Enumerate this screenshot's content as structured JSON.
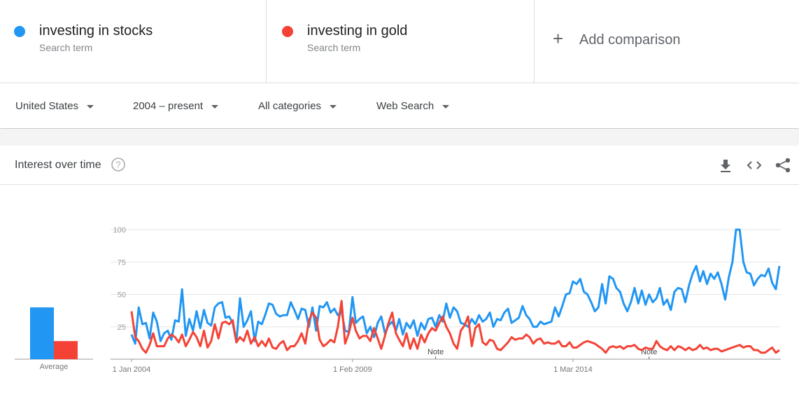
{
  "add_comparison": "Add comparison",
  "filters": [
    "United States",
    "2004 – present",
    "All categories",
    "Web Search"
  ],
  "panel_title": "Interest over time",
  "chart_data": {
    "type": "line",
    "average_label": "Average",
    "x": [
      "2004-01-01",
      "2004-02-01",
      "2004-03-01",
      "2004-04-01",
      "2004-05-01",
      "2004-06-01",
      "2004-07-01",
      "2004-08-01",
      "2004-09-01",
      "2004-10-01",
      "2004-11-01",
      "2004-12-01",
      "2005-01-01",
      "2005-02-01",
      "2005-03-01",
      "2005-04-01",
      "2005-05-01",
      "2005-06-01",
      "2005-07-01",
      "2005-08-01",
      "2005-09-01",
      "2005-10-01",
      "2005-11-01",
      "2005-12-01",
      "2006-01-01",
      "2006-02-01",
      "2006-03-01",
      "2006-04-01",
      "2006-05-01",
      "2006-06-01",
      "2006-07-01",
      "2006-08-01",
      "2006-09-01",
      "2006-10-01",
      "2006-11-01",
      "2006-12-01",
      "2007-01-01",
      "2007-02-01",
      "2007-03-01",
      "2007-04-01",
      "2007-05-01",
      "2007-06-01",
      "2007-07-01",
      "2007-08-01",
      "2007-09-01",
      "2007-10-01",
      "2007-11-01",
      "2007-12-01",
      "2008-01-01",
      "2008-02-01",
      "2008-03-01",
      "2008-04-01",
      "2008-05-01",
      "2008-06-01",
      "2008-07-01",
      "2008-08-01",
      "2008-09-01",
      "2008-10-01",
      "2008-11-01",
      "2008-12-01",
      "2009-01-01",
      "2009-02-01",
      "2009-03-01",
      "2009-04-01",
      "2009-05-01",
      "2009-06-01",
      "2009-07-01",
      "2009-08-01",
      "2009-09-01",
      "2009-10-01",
      "2009-11-01",
      "2009-12-01",
      "2010-01-01",
      "2010-02-01",
      "2010-03-01",
      "2010-04-01",
      "2010-05-01",
      "2010-06-01",
      "2010-07-01",
      "2010-08-01",
      "2010-09-01",
      "2010-10-01",
      "2010-11-01",
      "2010-12-01",
      "2011-01-01",
      "2011-02-01",
      "2011-03-01",
      "2011-04-01",
      "2011-05-01",
      "2011-06-01",
      "2011-07-01",
      "2011-08-01",
      "2011-09-01",
      "2011-10-01",
      "2011-11-01",
      "2011-12-01",
      "2012-01-01",
      "2012-02-01",
      "2012-03-01",
      "2012-04-01",
      "2012-05-01",
      "2012-06-01",
      "2012-07-01",
      "2012-08-01",
      "2012-09-01",
      "2012-10-01",
      "2012-11-01",
      "2012-12-01",
      "2013-01-01",
      "2013-02-01",
      "2013-03-01",
      "2013-04-01",
      "2013-05-01",
      "2013-06-01",
      "2013-07-01",
      "2013-08-01",
      "2013-09-01",
      "2013-10-01",
      "2013-11-01",
      "2013-12-01",
      "2014-01-01",
      "2014-02-01",
      "2014-03-01",
      "2014-04-01",
      "2014-05-01",
      "2014-06-01",
      "2014-07-01",
      "2014-08-01",
      "2014-09-01",
      "2014-10-01",
      "2014-11-01",
      "2014-12-01",
      "2015-01-01",
      "2015-02-01",
      "2015-03-01",
      "2015-04-01",
      "2015-05-01",
      "2015-06-01",
      "2015-07-01",
      "2015-08-01",
      "2015-09-01",
      "2015-10-01",
      "2015-11-01",
      "2015-12-01",
      "2016-01-01",
      "2016-02-01",
      "2016-03-01",
      "2016-04-01",
      "2016-05-01",
      "2016-06-01",
      "2016-07-01",
      "2016-08-01",
      "2016-09-01",
      "2016-10-01",
      "2016-11-01",
      "2016-12-01",
      "2017-01-01",
      "2017-02-01",
      "2017-03-01",
      "2017-04-01",
      "2017-05-01",
      "2017-06-01",
      "2017-07-01",
      "2017-08-01",
      "2017-09-01",
      "2017-10-01",
      "2017-11-01",
      "2017-12-01",
      "2018-01-01",
      "2018-02-01",
      "2018-03-01",
      "2018-04-01",
      "2018-05-01",
      "2018-06-01",
      "2018-07-01",
      "2018-08-01",
      "2018-09-01",
      "2018-10-01",
      "2018-11-01",
      "2018-12-01"
    ],
    "series": [
      {
        "name": "investing in stocks",
        "sublabel": "Search term",
        "color": "#2196f3",
        "average": 40,
        "values": [
          19,
          12,
          40,
          27,
          28,
          16,
          36,
          29,
          14,
          20,
          22,
          15,
          30,
          29,
          54,
          18,
          31,
          22,
          37,
          24,
          38,
          28,
          26,
          40,
          43,
          44,
          32,
          33,
          28,
          13,
          47,
          25,
          30,
          37,
          14,
          29,
          27,
          35,
          43,
          42,
          35,
          33,
          34,
          34,
          44,
          38,
          31,
          39,
          38,
          25,
          40,
          22,
          41,
          40,
          44,
          36,
          39,
          34,
          37,
          22,
          21,
          48,
          28,
          31,
          33,
          20,
          25,
          17,
          28,
          33,
          20,
          26,
          29,
          22,
          31,
          19,
          28,
          24,
          30,
          18,
          28,
          23,
          31,
          32,
          25,
          34,
          29,
          43,
          32,
          40,
          37,
          28,
          27,
          25,
          31,
          27,
          34,
          29,
          31,
          36,
          25,
          31,
          30,
          36,
          39,
          28,
          30,
          32,
          41,
          34,
          31,
          25,
          25,
          29,
          27,
          28,
          29,
          40,
          33,
          41,
          50,
          51,
          60,
          58,
          62,
          52,
          50,
          44,
          37,
          40,
          58,
          43,
          64,
          62,
          55,
          52,
          43,
          37,
          44,
          55,
          43,
          53,
          42,
          50,
          44,
          47,
          55,
          42,
          46,
          38,
          52,
          55,
          54,
          44,
          57,
          66,
          72,
          60,
          68,
          58,
          66,
          62,
          67,
          58,
          46,
          63,
          75,
          100,
          100,
          75,
          67,
          66,
          57,
          62,
          65,
          64,
          70,
          59,
          54,
          72
        ]
      },
      {
        "name": "investing in gold",
        "sublabel": "Search term",
        "color": "#f44336",
        "average": 14,
        "values": [
          37,
          17,
          14,
          8,
          5,
          11,
          20,
          10,
          10,
          10,
          16,
          19,
          17,
          13,
          19,
          10,
          15,
          21,
          17,
          10,
          22,
          9,
          14,
          27,
          16,
          28,
          29,
          27,
          30,
          13,
          17,
          14,
          22,
          12,
          17,
          10,
          14,
          10,
          16,
          9,
          8,
          12,
          14,
          7,
          10,
          10,
          14,
          20,
          12,
          30,
          36,
          32,
          15,
          10,
          12,
          15,
          13,
          25,
          45,
          12,
          20,
          32,
          22,
          16,
          18,
          18,
          14,
          24,
          16,
          8,
          18,
          28,
          36,
          20,
          15,
          10,
          20,
          8,
          16,
          8,
          19,
          13,
          20,
          24,
          22,
          28,
          33,
          25,
          20,
          12,
          8,
          22,
          26,
          33,
          10,
          24,
          27,
          13,
          11,
          15,
          14,
          8,
          7,
          10,
          13,
          17,
          15,
          16,
          16,
          19,
          17,
          12,
          15,
          16,
          12,
          13,
          12,
          12,
          14,
          10,
          10,
          13,
          9,
          9,
          11,
          13,
          14,
          13,
          12,
          10,
          8,
          5,
          9,
          10,
          9,
          10,
          8,
          10,
          10,
          11,
          8,
          7,
          9,
          8,
          8,
          14,
          10,
          8,
          7,
          10,
          7,
          10,
          9,
          7,
          9,
          7,
          8,
          11,
          8,
          9,
          7,
          8,
          8,
          6,
          7,
          8,
          9,
          10,
          11,
          9,
          10,
          10,
          7,
          7,
          5,
          5,
          7,
          9,
          5,
          7
        ]
      }
    ],
    "xlim": [
      "2004-01-01",
      "2018-12-01"
    ],
    "xticks": [
      {
        "value": "2004-01-01",
        "label": "1 Jan 2004"
      },
      {
        "value": "2009-02-01",
        "label": "1 Feb 2009"
      },
      {
        "value": "2014-03-01",
        "label": "1 Mar 2014"
      }
    ],
    "ylim": [
      0,
      100
    ],
    "yticks": [
      25,
      50,
      75,
      100
    ],
    "grid": true,
    "annotations": [
      {
        "x": "2011-01-01",
        "label": "Note"
      },
      {
        "x": "2015-12-01",
        "label": "Note"
      }
    ]
  }
}
